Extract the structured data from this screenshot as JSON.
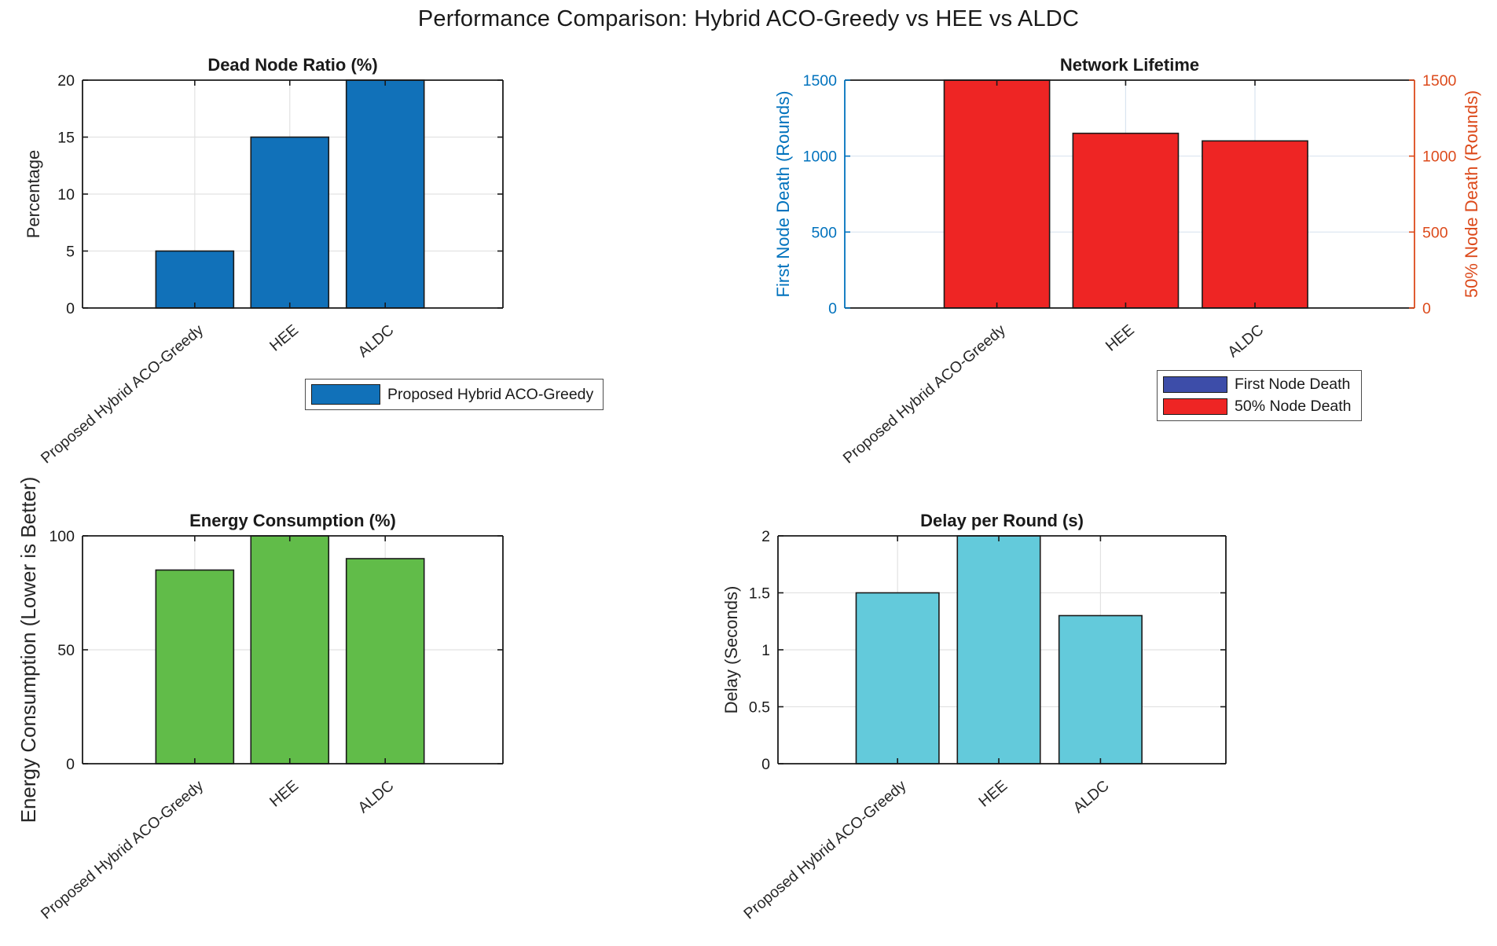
{
  "figure": {
    "title": "Performance Comparison: Hybrid ACO-Greedy vs HEE vs ALDC"
  },
  "categories": [
    "Proposed Hybrid ACO-Greedy",
    "HEE",
    "ALDC"
  ],
  "chart_data": [
    {
      "id": "dead-node-ratio",
      "type": "bar",
      "title": "Dead Node Ratio (%)",
      "ylabel": "Percentage",
      "categories": [
        "Proposed Hybrid ACO-Greedy",
        "HEE",
        "ALDC"
      ],
      "values": [
        5,
        15,
        20
      ],
      "yticks": [
        0,
        5,
        10,
        15,
        20
      ],
      "ylim": [
        0,
        20
      ],
      "bar_color": "#1171B9",
      "grid": true,
      "legend_entries": [
        "Proposed Hybrid ACO-Greedy"
      ]
    },
    {
      "id": "network-lifetime",
      "type": "bar",
      "title": "Network Lifetime",
      "ylabel_left": "First Node Death (Rounds)",
      "ylabel_right": "50% Node Death (Rounds)",
      "categories": [
        "Proposed Hybrid ACO-Greedy",
        "HEE",
        "ALDC"
      ],
      "series": [
        {
          "name": "First Node Death",
          "color": "#3D4DA9",
          "values": null
        },
        {
          "name": "50% Node Death",
          "color": "#EE2524",
          "values": [
            1500,
            1150,
            1100
          ]
        }
      ],
      "yticks": [
        0,
        500,
        1000,
        1500
      ],
      "ylim": [
        0,
        1500
      ],
      "axis_left_color": "#0072BD",
      "axis_right_color": "#DC4A1B",
      "grid": true,
      "legend_entries": [
        "First Node Death",
        "50% Node Death"
      ]
    },
    {
      "id": "energy-consumption",
      "type": "bar",
      "title": "Energy Consumption (%)",
      "ylabel": "Energy Consumption (Lower is Better)",
      "categories": [
        "Proposed Hybrid ACO-Greedy",
        "HEE",
        "ALDC"
      ],
      "values": [
        85,
        100,
        90
      ],
      "yticks": [
        0,
        50,
        100
      ],
      "ylim": [
        0,
        100
      ],
      "bar_color": "#61BC49",
      "grid": true
    },
    {
      "id": "delay-per-round",
      "type": "bar",
      "title": "Delay per Round (s)",
      "ylabel": "Delay (Seconds)",
      "categories": [
        "Proposed Hybrid ACO-Greedy",
        "HEE",
        "ALDC"
      ],
      "values": [
        1.5,
        2,
        1.3
      ],
      "yticks": [
        0,
        0.5,
        1,
        1.5,
        2
      ],
      "ytick_labels": [
        "0",
        "0.5",
        "1",
        "1.5",
        "2"
      ],
      "ylim": [
        0,
        2
      ],
      "bar_color": "#63CADB",
      "grid": true
    }
  ],
  "legends": {
    "top_left": {
      "entries": [
        {
          "label": "Proposed Hybrid ACO-Greedy",
          "color": "#1171B9"
        }
      ]
    },
    "top_right": {
      "entries": [
        {
          "label": "First Node Death",
          "color": "#3D4DA9"
        },
        {
          "label": "50% Node Death",
          "color": "#EE2524"
        }
      ]
    }
  }
}
